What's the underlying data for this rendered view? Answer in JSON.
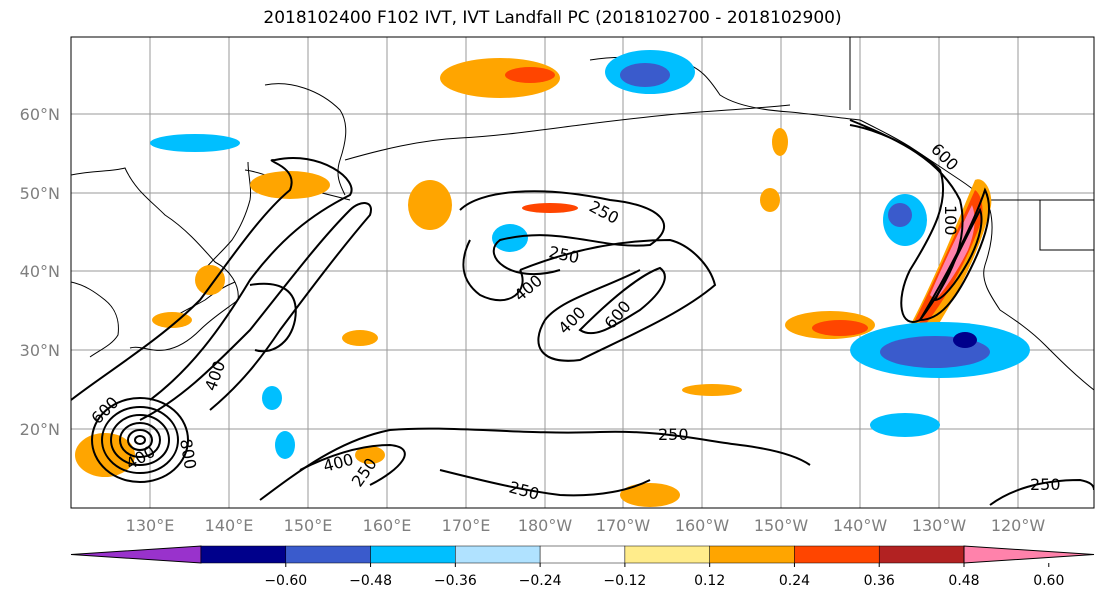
{
  "title": "2018102400 F102 IVT, IVT Landfall PC (2018102700 - 2018102900)",
  "map": {
    "lat_ticks": [
      "60°N",
      "50°N",
      "40°N",
      "30°N",
      "20°N"
    ],
    "lon_ticks": [
      "130°E",
      "140°E",
      "150°E",
      "160°E",
      "170°E",
      "180°W",
      "170°W",
      "160°W",
      "150°W",
      "140°W",
      "130°W",
      "120°W"
    ],
    "contour_labels": [
      "250",
      "250",
      "400",
      "400",
      "600",
      "250",
      "400",
      "250",
      "250",
      "400",
      "800",
      "600",
      "400",
      "250",
      "100",
      "600"
    ]
  },
  "colorbar": {
    "colors": [
      "#9932cc",
      "#00008b",
      "#3a5bcc",
      "#00bfff",
      "#b0e2ff",
      "#ffffff",
      "#ffec8b",
      "#ffa500",
      "#ff4500",
      "#b22222",
      "#ff82ab"
    ],
    "labels": [
      "−0.60",
      "−0.48",
      "−0.36",
      "−0.24",
      "−0.12",
      "0.12",
      "0.24",
      "0.36",
      "0.48",
      "0.60"
    ]
  }
}
